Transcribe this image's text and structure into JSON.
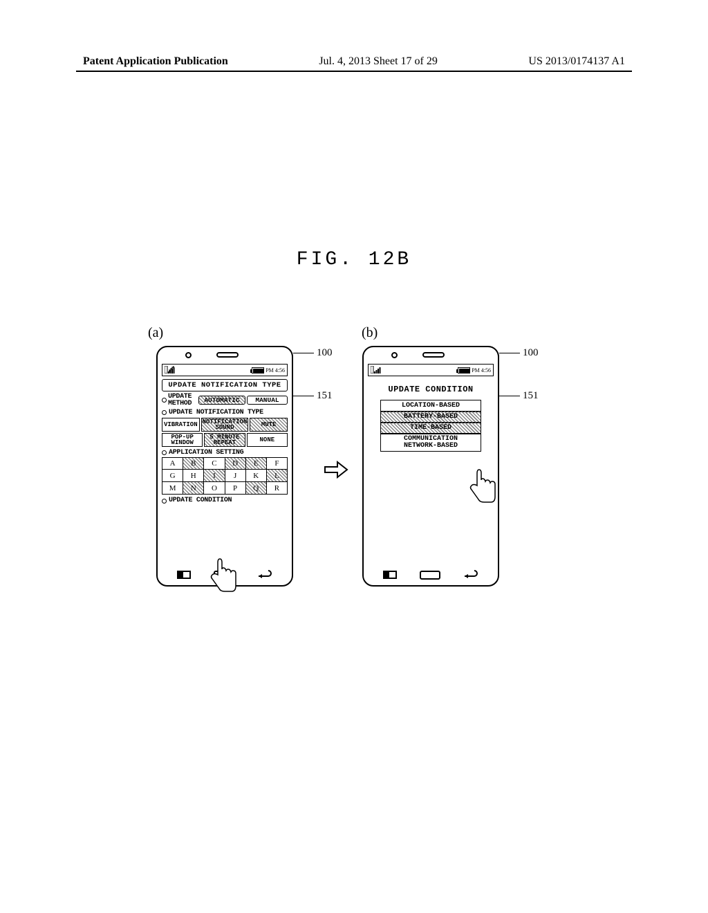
{
  "header": {
    "left": "Patent Application Publication",
    "center": "Jul. 4, 2013  Sheet 17 of 29",
    "right": "US 2013/0174137 A1"
  },
  "figure_title": "FIG. 12B",
  "panel_a_label": "(a)",
  "panel_b_label": "(b)",
  "status_time": "PM 4:56",
  "ref_100": "100",
  "ref_151": "151",
  "panel_a": {
    "title": "UPDATE NOTIFICATION TYPE",
    "update_method_label": "UPDATE\nMETHOD",
    "automatic": "AUTOMATIC",
    "manual": "MANUAL",
    "notif_type_header": "UPDATE NOTIFICATION TYPE",
    "vibration": "VIBRATION",
    "notif_sound": "NOTIFICATION\nSOUND",
    "mute": "MUTE",
    "popup": "POP-UP\nWINDOW",
    "repeat": "5 MINUTE\nREPEAT",
    "none": "NONE",
    "app_setting": "APPLICATION SETTING",
    "apps": [
      [
        "A",
        "B",
        "C",
        "D",
        "E",
        "F"
      ],
      [
        "G",
        "H",
        "I",
        "J",
        "K",
        "L"
      ],
      [
        "M",
        "N",
        "O",
        "P",
        "Q",
        "R"
      ]
    ],
    "app_hatched": [
      [
        0,
        1,
        0,
        1,
        1,
        0
      ],
      [
        0,
        0,
        1,
        0,
        0,
        1
      ],
      [
        0,
        1,
        0,
        0,
        1,
        0
      ]
    ],
    "update_condition": "UPDATE CONDITION"
  },
  "panel_b": {
    "title": "UPDATE CONDITION",
    "items": [
      "LOCATION-BASED",
      "BATTERY-BASED",
      "TIME-BASED",
      "COMMUNICATION\nNETWORK-BASED"
    ],
    "hatched": [
      0,
      1,
      1,
      0
    ]
  },
  "colors": {
    "line": "#000000",
    "bg": "#ffffff",
    "hatch": "#888888"
  }
}
